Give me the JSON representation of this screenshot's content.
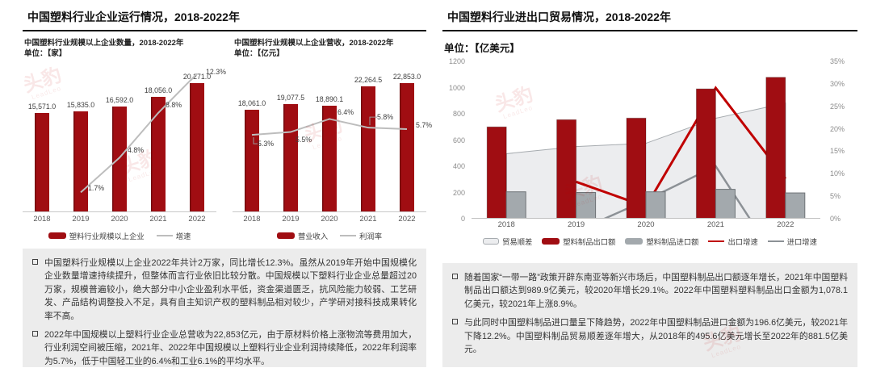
{
  "page": {
    "background": "#FFFFFF"
  },
  "brand_watermark": {
    "text": "头豹",
    "subtext": "LeadLeo",
    "color": "#C00000"
  },
  "left_panel": {
    "title": "中国塑料行业企业运行情况，2018-2022年",
    "notes": [
      "中国塑料行业规模以上企业2022年共计2万家，同比增长12.3%。虽然从2019年开始中国规模化企业数量增速持续提升，但整体而言行业依旧比较分散。中国规模以下塑料行业企业总量超过20万家，规模普遍较小，绝大部分中小企业盈利水平低，资金渠道匮乏，抗风险能力较弱、工艺研发、产品结构调整投入不足，具有自主知识产权的塑料制品相对较少，产学研对接科技成果转化率不高。",
      "2022年中国规模以上塑料行业企业总营收为22,853亿元，由于原材料价格上涨物流等费用加大，行业利润空间被压缩，2021年、2022年中国规模以上塑料行业企业利润持续降低，2022年利润率为5.7%，低于中国轻工业的6.4%和工业6.1%的平均水平。"
    ]
  },
  "right_panel": {
    "title": "中国塑料行业进出口贸易情况，2018-2022年",
    "notes": [
      "随着国家“一带一路”政策开辟东南亚等新兴市场后，中国塑料制品出口额逐年增长，2021年中国塑料制品出口额达到989.9亿美元，较2020年增长29.1%。2022年中国塑料塑料制品出口金额为1,078.1亿美元，较2021年上涨8.9%。",
      "与此同时中国塑料制品进口量呈下降趋势，2022年中国塑料制品进口金额为196.6亿美元，较2021年下降12.2%。中国塑料制品贸易顺差逐年增大，从2018年的495.6亿美元增长至2022年的881.5亿美元。"
    ]
  },
  "chart_data": [
    {
      "id": "enterprise-count",
      "type": "bar",
      "title": "中国塑料行业规模以上企业数量，2018-2022年",
      "unit_label": "单位：【家】",
      "categories": [
        "2018",
        "2019",
        "2020",
        "2021",
        "2022"
      ],
      "series": [
        {
          "name": "塑料行业规模以上企业",
          "type": "bar",
          "values": [
            15571.0,
            15835.0,
            16592.0,
            18056.0,
            20271.0
          ],
          "labels": [
            "15,571.0",
            "15,835.0",
            "16,592.0",
            "18,056.0",
            "20,271.0"
          ],
          "color": "#A00D12"
        },
        {
          "name": "增速",
          "type": "line",
          "values": [
            null,
            1.7,
            4.8,
            8.8,
            12.3
          ],
          "labels": [
            null,
            "1.7%",
            "4.8%",
            "8.8%",
            "12.3%"
          ],
          "color": "#BDBDBD"
        }
      ],
      "line_axis_max": 12.9,
      "grid": false,
      "legend_position": "bottom"
    },
    {
      "id": "enterprise-revenue",
      "type": "bar",
      "title": "中国塑料行业规模以上企业营收，2018-2022年",
      "unit_label": "单位：【亿元】",
      "categories": [
        "2018",
        "2019",
        "2020",
        "2021",
        "2022"
      ],
      "series": [
        {
          "name": "营业收入",
          "type": "bar",
          "values": [
            18061.0,
            19077.5,
            18890.1,
            22264.5,
            22853.0
          ],
          "labels": [
            "18,061.0",
            "19,077.5",
            "18,890.1",
            "22,264.5",
            "22,853.0"
          ],
          "color": "#A00D12"
        },
        {
          "name": "利润率",
          "type": "line",
          "values": [
            5.3,
            5.5,
            6.4,
            5.8,
            5.7
          ],
          "labels": [
            "5.3%",
            "5.5%",
            "6.4%",
            "5.8%",
            "5.7%"
          ],
          "color": "#BDBDBD"
        }
      ],
      "line_axis_max": 10,
      "grid": false,
      "legend_position": "bottom"
    },
    {
      "id": "import-export-trade",
      "type": "combo",
      "title": "中国塑料行业进出口贸易情况，2018-2022年",
      "unit_label": "单位：【亿美元】",
      "categories": [
        "2018",
        "2019",
        "2020",
        "2021",
        "2022"
      ],
      "series": [
        {
          "name": "贸易顺差",
          "type": "area",
          "values": [
            495.6,
            550,
            575,
            766,
            881.5
          ],
          "color": "#ECEDEF",
          "border": "#A6ABAF",
          "axis": "left"
        },
        {
          "name": "塑料制品出口额",
          "type": "bar",
          "values": [
            700,
            755,
            767,
            989.9,
            1078.1
          ],
          "color": "#A00D12",
          "axis": "left"
        },
        {
          "name": "塑料制品进口额",
          "type": "bar",
          "values": [
            205,
            200,
            205,
            224,
            196.6
          ],
          "color": "#A3A9AD",
          "border": "#6E7377",
          "axis": "left"
        },
        {
          "name": "出口增速",
          "type": "line",
          "values": [
            null,
            8.2,
            2.7,
            29.1,
            8.9
          ],
          "color": "#C00000",
          "axis": "right"
        },
        {
          "name": "进口增速",
          "type": "line",
          "values": [
            null,
            -2.8,
            4.1,
            11.7,
            -12.2
          ],
          "color": "#8C9196",
          "axis": "right"
        }
      ],
      "left_axis": {
        "min": 0,
        "max": 1200,
        "step": 200,
        "ticks": [
          "0",
          "200",
          "400",
          "600",
          "800",
          "1000",
          "1200"
        ]
      },
      "right_axis": {
        "min": 0,
        "max": 35,
        "step": 5,
        "ticks": [
          "0%",
          "5%",
          "10%",
          "15%",
          "20%",
          "25%",
          "30%",
          "35%"
        ]
      },
      "grid": false,
      "legend_position": "bottom"
    }
  ]
}
